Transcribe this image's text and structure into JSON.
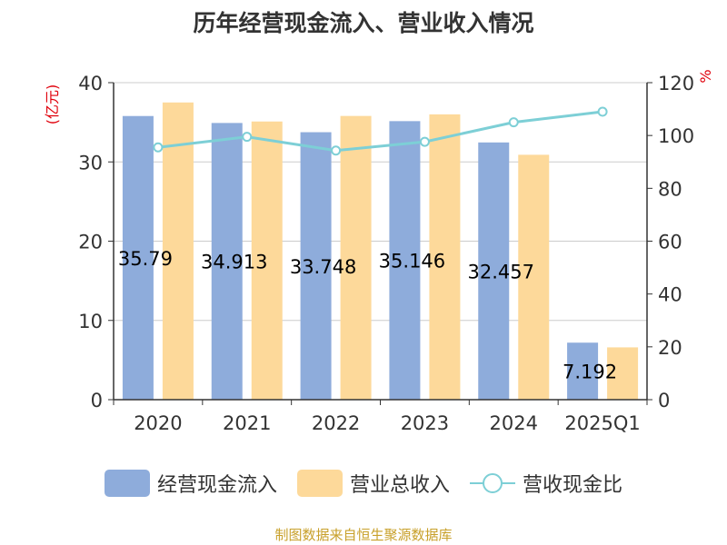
{
  "title": "历年经营现金流入、营业收入情况",
  "source": "制图数据来自恒生聚源数据库",
  "colors": {
    "bar1": "#8eacdb",
    "bar2": "#fdd99a",
    "line": "#7dcfd6",
    "axis": "#333333",
    "grid": "#cccccc",
    "unit": "#e0000b"
  },
  "chart_data": {
    "type": "bar",
    "categories": [
      "2020",
      "2021",
      "2022",
      "2023",
      "2024",
      "2025Q1"
    ],
    "series": [
      {
        "name": "经营现金流入",
        "axis": "left",
        "values": [
          35.79,
          34.913,
          33.748,
          35.146,
          32.457,
          7.192
        ],
        "data_labels": [
          "35.79",
          "34.913",
          "33.748",
          "35.146",
          "32.457",
          "7.192"
        ]
      },
      {
        "name": "营业总收入",
        "axis": "left",
        "values": [
          37.5,
          35.1,
          35.8,
          36.0,
          30.9,
          6.6
        ]
      },
      {
        "name": "营收现金比",
        "axis": "right",
        "type": "line",
        "values": [
          95.5,
          99.5,
          94.3,
          97.6,
          105.0,
          109.0
        ]
      }
    ],
    "y_left": {
      "label": "(亿元)",
      "ylim": [
        0,
        40
      ],
      "ticks": [
        "0",
        "10",
        "20",
        "30",
        "40"
      ]
    },
    "y_right": {
      "label": "%",
      "ylim": [
        0,
        120
      ],
      "ticks": [
        "0",
        "20",
        "40",
        "60",
        "80",
        "100",
        "120"
      ]
    },
    "grid": true,
    "legend_position": "bottom"
  }
}
